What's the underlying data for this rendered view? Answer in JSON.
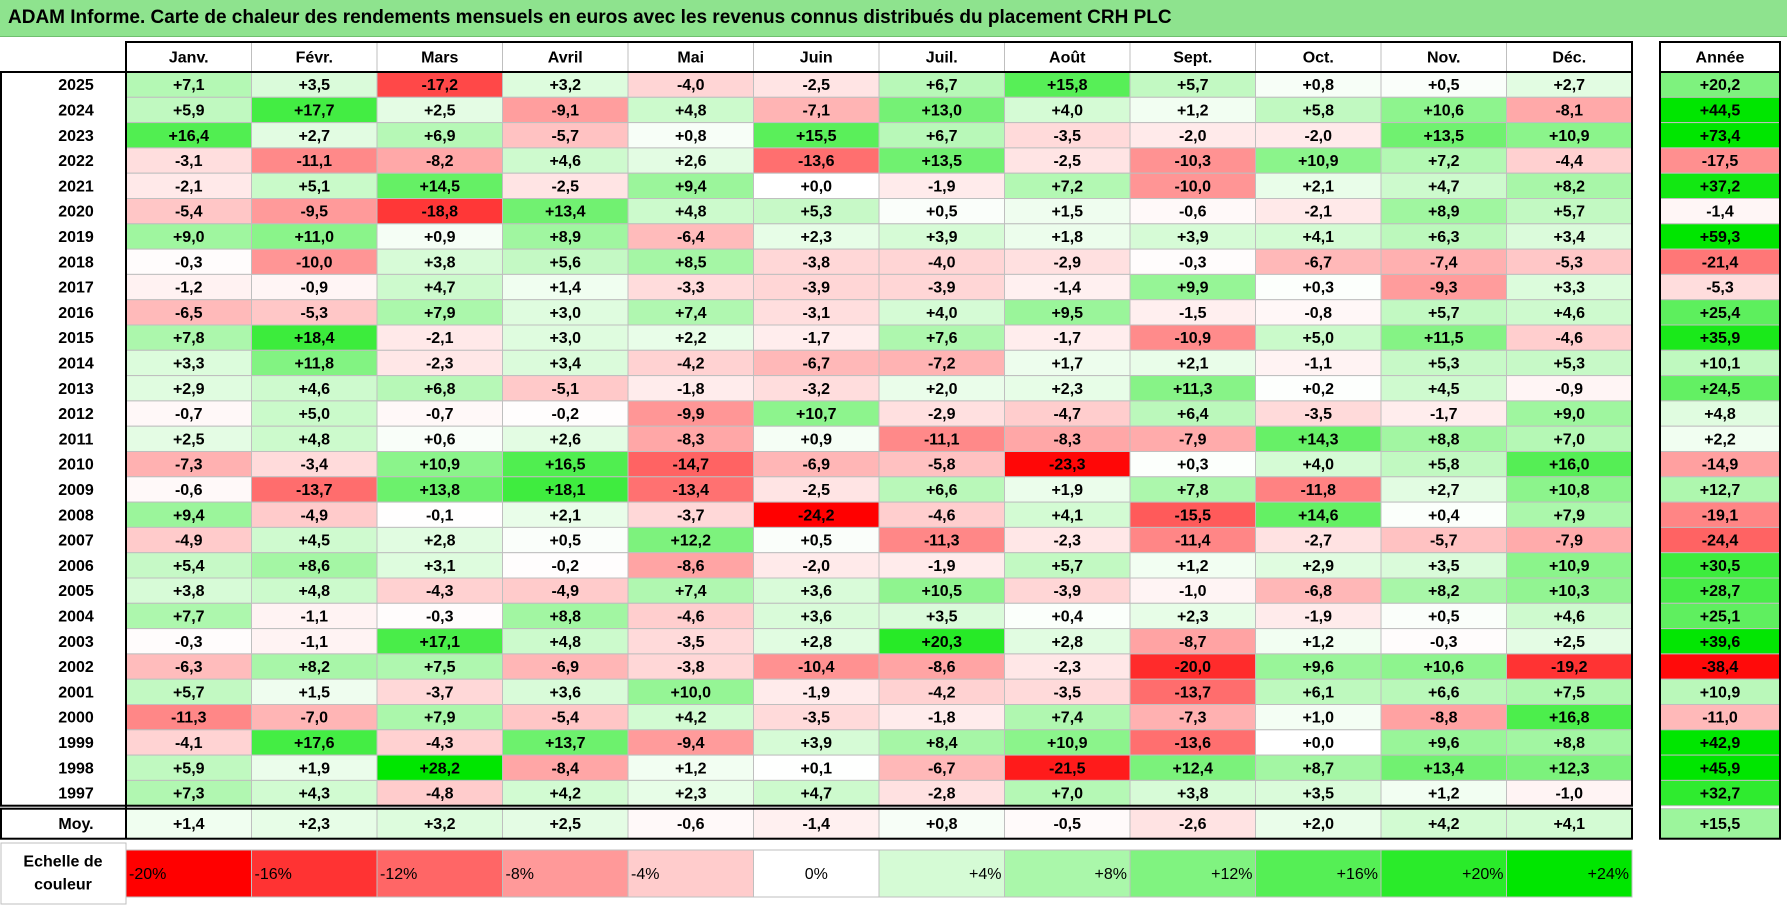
{
  "title": "ADAM Informe. Carte de chaleur des rendements mensuels en euros avec les revenus connus distribués du placement CRH PLC",
  "chart_data": {
    "type": "heatmap",
    "months": [
      "Janv.",
      "Févr.",
      "Mars",
      "Avril",
      "Mai",
      "Juin",
      "Juil.",
      "Août",
      "Sept.",
      "Oct.",
      "Nov.",
      "Déc."
    ],
    "year_header": "Année",
    "rows": [
      {
        "year": "2025",
        "values": [
          "+7,1",
          "+3,5",
          "-17,2",
          "+3,2",
          "-4,0",
          "-2,5",
          "+6,7",
          "+15,8",
          "+5,7",
          "+0,8",
          "+0,5",
          "+2,7"
        ],
        "annual": "+20,2"
      },
      {
        "year": "2024",
        "values": [
          "+5,9",
          "+17,7",
          "+2,5",
          "-9,1",
          "+4,8",
          "-7,1",
          "+13,0",
          "+4,0",
          "+1,2",
          "+5,8",
          "+10,6",
          "-8,1"
        ],
        "annual": "+44,5"
      },
      {
        "year": "2023",
        "values": [
          "+16,4",
          "+2,7",
          "+6,9",
          "-5,7",
          "+0,8",
          "+15,5",
          "+6,7",
          "-3,5",
          "-2,0",
          "-2,0",
          "+13,5",
          "+10,9"
        ],
        "annual": "+73,4"
      },
      {
        "year": "2022",
        "values": [
          "-3,1",
          "-11,1",
          "-8,2",
          "+4,6",
          "+2,6",
          "-13,6",
          "+13,5",
          "-2,5",
          "-10,3",
          "+10,9",
          "+7,2",
          "-4,4"
        ],
        "annual": "-17,5"
      },
      {
        "year": "2021",
        "values": [
          "-2,1",
          "+5,1",
          "+14,5",
          "-2,5",
          "+9,4",
          "+0,0",
          "-1,9",
          "+7,2",
          "-10,0",
          "+2,1",
          "+4,7",
          "+8,2"
        ],
        "annual": "+37,2"
      },
      {
        "year": "2020",
        "values": [
          "-5,4",
          "-9,5",
          "-18,8",
          "+13,4",
          "+4,8",
          "+5,3",
          "+0,5",
          "+1,5",
          "-0,6",
          "-2,1",
          "+8,9",
          "+5,7"
        ],
        "annual": "-1,4"
      },
      {
        "year": "2019",
        "values": [
          "+9,0",
          "+11,0",
          "+0,9",
          "+8,9",
          "-6,4",
          "+2,3",
          "+3,9",
          "+1,8",
          "+3,9",
          "+4,1",
          "+6,3",
          "+3,4"
        ],
        "annual": "+59,3"
      },
      {
        "year": "2018",
        "values": [
          "-0,3",
          "-10,0",
          "+3,8",
          "+5,6",
          "+8,5",
          "-3,8",
          "-4,0",
          "-2,9",
          "-0,3",
          "-6,7",
          "-7,4",
          "-5,3"
        ],
        "annual": "-21,4"
      },
      {
        "year": "2017",
        "values": [
          "-1,2",
          "-0,9",
          "+4,7",
          "+1,4",
          "-3,3",
          "-3,9",
          "-3,9",
          "-1,4",
          "+9,9",
          "+0,3",
          "-9,3",
          "+3,3"
        ],
        "annual": "-5,3"
      },
      {
        "year": "2016",
        "values": [
          "-6,5",
          "-5,3",
          "+7,9",
          "+3,0",
          "+7,4",
          "-3,1",
          "+4,0",
          "+9,5",
          "-1,5",
          "-0,8",
          "+5,7",
          "+4,6"
        ],
        "annual": "+25,4"
      },
      {
        "year": "2015",
        "values": [
          "+7,8",
          "+18,4",
          "-2,1",
          "+3,0",
          "+2,2",
          "-1,7",
          "+7,6",
          "-1,7",
          "-10,9",
          "+5,0",
          "+11,5",
          "-4,6"
        ],
        "annual": "+35,9"
      },
      {
        "year": "2014",
        "values": [
          "+3,3",
          "+11,8",
          "-2,3",
          "+3,4",
          "-4,2",
          "-6,7",
          "-7,2",
          "+1,7",
          "+2,1",
          "-1,1",
          "+5,3",
          "+5,3"
        ],
        "annual": "+10,1"
      },
      {
        "year": "2013",
        "values": [
          "+2,9",
          "+4,6",
          "+6,8",
          "-5,1",
          "-1,8",
          "-3,2",
          "+2,0",
          "+2,3",
          "+11,3",
          "+0,2",
          "+4,5",
          "-0,9"
        ],
        "annual": "+24,5"
      },
      {
        "year": "2012",
        "values": [
          "-0,7",
          "+5,0",
          "-0,7",
          "-0,2",
          "-9,9",
          "+10,7",
          "-2,9",
          "-4,7",
          "+6,4",
          "-3,5",
          "-1,7",
          "+9,0"
        ],
        "annual": "+4,8"
      },
      {
        "year": "2011",
        "values": [
          "+2,5",
          "+4,8",
          "+0,6",
          "+2,6",
          "-8,3",
          "+0,9",
          "-11,1",
          "-8,3",
          "-7,9",
          "+14,3",
          "+8,8",
          "+7,0"
        ],
        "annual": "+2,2"
      },
      {
        "year": "2010",
        "values": [
          "-7,3",
          "-3,4",
          "+10,9",
          "+16,5",
          "-14,7",
          "-6,9",
          "-5,8",
          "-23,3",
          "+0,3",
          "+4,0",
          "+5,8",
          "+16,0"
        ],
        "annual": "-14,9"
      },
      {
        "year": "2009",
        "values": [
          "-0,6",
          "-13,7",
          "+13,8",
          "+18,1",
          "-13,4",
          "-2,5",
          "+6,6",
          "+1,9",
          "+7,8",
          "-11,8",
          "+2,7",
          "+10,8"
        ],
        "annual": "+12,7"
      },
      {
        "year": "2008",
        "values": [
          "+9,4",
          "-4,9",
          "-0,1",
          "+2,1",
          "-3,7",
          "-24,2",
          "-4,6",
          "+4,1",
          "-15,5",
          "+14,6",
          "+0,4",
          "+7,9"
        ],
        "annual": "-19,1"
      },
      {
        "year": "2007",
        "values": [
          "-4,9",
          "+4,5",
          "+2,8",
          "+0,5",
          "+12,2",
          "+0,5",
          "-11,3",
          "-2,3",
          "-11,4",
          "-2,7",
          "-5,7",
          "-7,9"
        ],
        "annual": "-24,4"
      },
      {
        "year": "2006",
        "values": [
          "+5,4",
          "+8,6",
          "+3,1",
          "-0,2",
          "-8,6",
          "-2,0",
          "-1,9",
          "+5,7",
          "+1,2",
          "+2,9",
          "+3,5",
          "+10,9"
        ],
        "annual": "+30,5"
      },
      {
        "year": "2005",
        "values": [
          "+3,8",
          "+4,8",
          "-4,3",
          "-4,9",
          "+7,4",
          "+3,6",
          "+10,5",
          "-3,9",
          "-1,0",
          "-6,8",
          "+8,2",
          "+10,3"
        ],
        "annual": "+28,7"
      },
      {
        "year": "2004",
        "values": [
          "+7,7",
          "-1,1",
          "-0,3",
          "+8,8",
          "-4,6",
          "+3,6",
          "+3,5",
          "+0,4",
          "+2,3",
          "-1,9",
          "+0,5",
          "+4,6"
        ],
        "annual": "+25,1"
      },
      {
        "year": "2003",
        "values": [
          "-0,3",
          "-1,1",
          "+17,1",
          "+4,8",
          "-3,5",
          "+2,8",
          "+20,3",
          "+2,8",
          "-8,7",
          "+1,2",
          "-0,3",
          "+2,5"
        ],
        "annual": "+39,6"
      },
      {
        "year": "2002",
        "values": [
          "-6,3",
          "+8,2",
          "+7,5",
          "-6,9",
          "-3,8",
          "-10,4",
          "-8,6",
          "-2,3",
          "-20,0",
          "+9,6",
          "+10,6",
          "-19,2"
        ],
        "annual": "-38,4"
      },
      {
        "year": "2001",
        "values": [
          "+5,7",
          "+1,5",
          "-3,7",
          "+3,6",
          "+10,0",
          "-1,9",
          "-4,2",
          "-3,5",
          "-13,7",
          "+6,1",
          "+6,6",
          "+7,5"
        ],
        "annual": "+10,9"
      },
      {
        "year": "2000",
        "values": [
          "-11,3",
          "-7,0",
          "+7,9",
          "-5,4",
          "+4,2",
          "-3,5",
          "-1,8",
          "+7,4",
          "-7,3",
          "+1,0",
          "-8,8",
          "+16,8"
        ],
        "annual": "-11,0"
      },
      {
        "year": "1999",
        "values": [
          "-4,1",
          "+17,6",
          "-4,3",
          "+13,7",
          "-9,4",
          "+3,9",
          "+8,4",
          "+10,9",
          "-13,6",
          "+0,0",
          "+9,6",
          "+8,8"
        ],
        "annual": "+42,9"
      },
      {
        "year": "1998",
        "values": [
          "+5,9",
          "+1,9",
          "+28,2",
          "-8,4",
          "+1,2",
          "+0,1",
          "-6,7",
          "-21,5",
          "+12,4",
          "+8,7",
          "+13,4",
          "+12,3"
        ],
        "annual": "+45,9"
      },
      {
        "year": "1997",
        "values": [
          "+7,3",
          "+4,3",
          "-4,8",
          "+4,2",
          "+2,3",
          "+4,7",
          "-2,8",
          "+7,0",
          "+3,8",
          "+3,5",
          "+1,2",
          "-1,0"
        ],
        "annual": "+32,7"
      }
    ],
    "average": {
      "label": "Moy.",
      "values": [
        "+1,4",
        "+2,3",
        "+3,2",
        "+2,5",
        "-0,6",
        "-1,4",
        "+0,8",
        "-0,5",
        "-2,6",
        "+2,0",
        "+4,2",
        "+4,1"
      ],
      "annual": "+15,5"
    },
    "scale": {
      "label_line1": "Echelle de",
      "label_line2": "couleur",
      "steps": [
        {
          "label": "-20%",
          "value": -20,
          "color": "#ff0000"
        },
        {
          "label": "-16%",
          "value": -16,
          "color": "#ff3333"
        },
        {
          "label": "-12%",
          "value": -12,
          "color": "#ff6666"
        },
        {
          "label": "-8%",
          "value": -8,
          "color": "#ff9999"
        },
        {
          "label": "-4%",
          "value": -4,
          "color": "#ffcccc"
        },
        {
          "label": "0%",
          "value": 0,
          "color": "#ffffff"
        },
        {
          "label": "+4%",
          "value": 4,
          "color": "#d5fbd5"
        },
        {
          "label": "+8%",
          "value": 8,
          "color": "#aaf7aa"
        },
        {
          "label": "+12%",
          "value": 12,
          "color": "#80f380"
        },
        {
          "label": "+16%",
          "value": 16,
          "color": "#55ef55"
        },
        {
          "label": "+20%",
          "value": 20,
          "color": "#2aeb2a"
        },
        {
          "label": "+24%",
          "value": 24,
          "color": "#00e600"
        }
      ]
    },
    "colors": {
      "title_bg": "#8ee38e",
      "grid": "#bfbfbf",
      "border": "#000000",
      "negative": "#ff0000",
      "positive": "#00e600",
      "neutral": "#ffffff"
    }
  }
}
